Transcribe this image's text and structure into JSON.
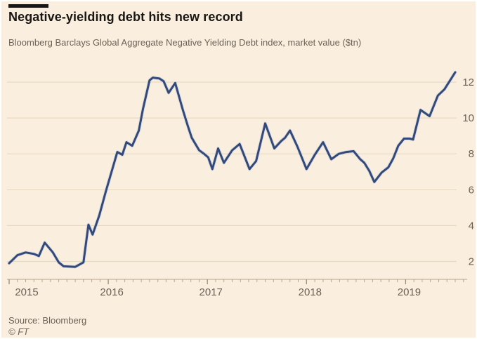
{
  "header": {
    "title": "Negative-yielding debt hits new record",
    "subtitle": "Bloomberg Barclays Global Aggregate Negative Yielding Debt index, market value ($tn)"
  },
  "footer": {
    "source": "Source: Bloomberg",
    "copyright": "© FT"
  },
  "colors": {
    "background": "#FAEFDE",
    "ink": "#1A1614",
    "muted": "#6B6156",
    "grid": "#E7D9C1",
    "axis": "#B5A58D",
    "tick_major": "#9A8C74",
    "line": "#33497A",
    "line_halo": "#A9BDDF"
  },
  "chart_data": {
    "type": "line",
    "title": "Negative-yielding debt hits new record",
    "subtitle": "Bloomberg Barclays Global Aggregate Negative Yielding Debt index, market value ($tn)",
    "ylabel": "market value ($tn)",
    "xlabel": "",
    "legend": "none",
    "grid": "horizontal",
    "y_axis": {
      "side": "right",
      "ticks": [
        2,
        4,
        6,
        8,
        10,
        12
      ],
      "ylim": [
        1.0,
        12.8
      ]
    },
    "x_axis": {
      "tick_labels": [
        "2015",
        "2016",
        "2017",
        "2018",
        "2019"
      ],
      "tick_month_offsets": [
        0,
        12,
        24,
        36,
        48
      ],
      "minor_tick_every_months": 1,
      "minor_tick_count": 56,
      "xlim_months": [
        0,
        55.5
      ]
    },
    "series": [
      {
        "name": "Negative Yielding Debt index market value ($tn)",
        "x_unit": "months since Jan 2015",
        "points": [
          [
            0,
            1.9
          ],
          [
            1,
            2.35
          ],
          [
            2,
            2.5
          ],
          [
            3,
            2.42
          ],
          [
            3.6,
            2.3
          ],
          [
            4.3,
            3.05
          ],
          [
            5.3,
            2.5
          ],
          [
            6,
            1.95
          ],
          [
            6.6,
            1.73
          ],
          [
            8,
            1.7
          ],
          [
            9,
            1.95
          ],
          [
            9.6,
            4.05
          ],
          [
            10.1,
            3.5
          ],
          [
            10.9,
            4.55
          ],
          [
            11.7,
            5.9
          ],
          [
            13.1,
            8.1
          ],
          [
            13.7,
            7.95
          ],
          [
            14.2,
            8.65
          ],
          [
            14.9,
            8.45
          ],
          [
            15.7,
            9.3
          ],
          [
            16.2,
            10.5
          ],
          [
            17,
            12.1
          ],
          [
            17.4,
            12.25
          ],
          [
            18.2,
            12.2
          ],
          [
            18.7,
            12.05
          ],
          [
            19.3,
            11.4
          ],
          [
            20.1,
            11.95
          ],
          [
            21,
            10.5
          ],
          [
            21.6,
            9.6
          ],
          [
            22.1,
            8.9
          ],
          [
            23,
            8.2
          ],
          [
            23.6,
            8.0
          ],
          [
            24.1,
            7.8
          ],
          [
            24.6,
            7.15
          ],
          [
            25.3,
            8.3
          ],
          [
            26,
            7.5
          ],
          [
            27,
            8.2
          ],
          [
            27.9,
            8.55
          ],
          [
            29.1,
            7.15
          ],
          [
            29.9,
            7.6
          ],
          [
            31,
            9.7
          ],
          [
            32.1,
            8.3
          ],
          [
            32.9,
            8.7
          ],
          [
            33.4,
            8.9
          ],
          [
            34,
            9.3
          ],
          [
            34.9,
            8.4
          ],
          [
            36,
            7.15
          ],
          [
            37,
            7.95
          ],
          [
            38,
            8.65
          ],
          [
            39,
            7.7
          ],
          [
            39.9,
            8.0
          ],
          [
            40.8,
            8.1
          ],
          [
            41.7,
            8.15
          ],
          [
            42.5,
            7.7
          ],
          [
            43,
            7.5
          ],
          [
            43.6,
            7.05
          ],
          [
            44.2,
            6.43
          ],
          [
            45.1,
            6.96
          ],
          [
            45.9,
            7.25
          ],
          [
            46.5,
            7.75
          ],
          [
            47.1,
            8.45
          ],
          [
            47.8,
            8.85
          ],
          [
            48.5,
            8.85
          ],
          [
            48.9,
            8.8
          ],
          [
            49.8,
            10.45
          ],
          [
            50.9,
            10.1
          ],
          [
            51.9,
            11.25
          ],
          [
            52.7,
            11.6
          ],
          [
            54,
            12.55
          ]
        ]
      }
    ]
  }
}
